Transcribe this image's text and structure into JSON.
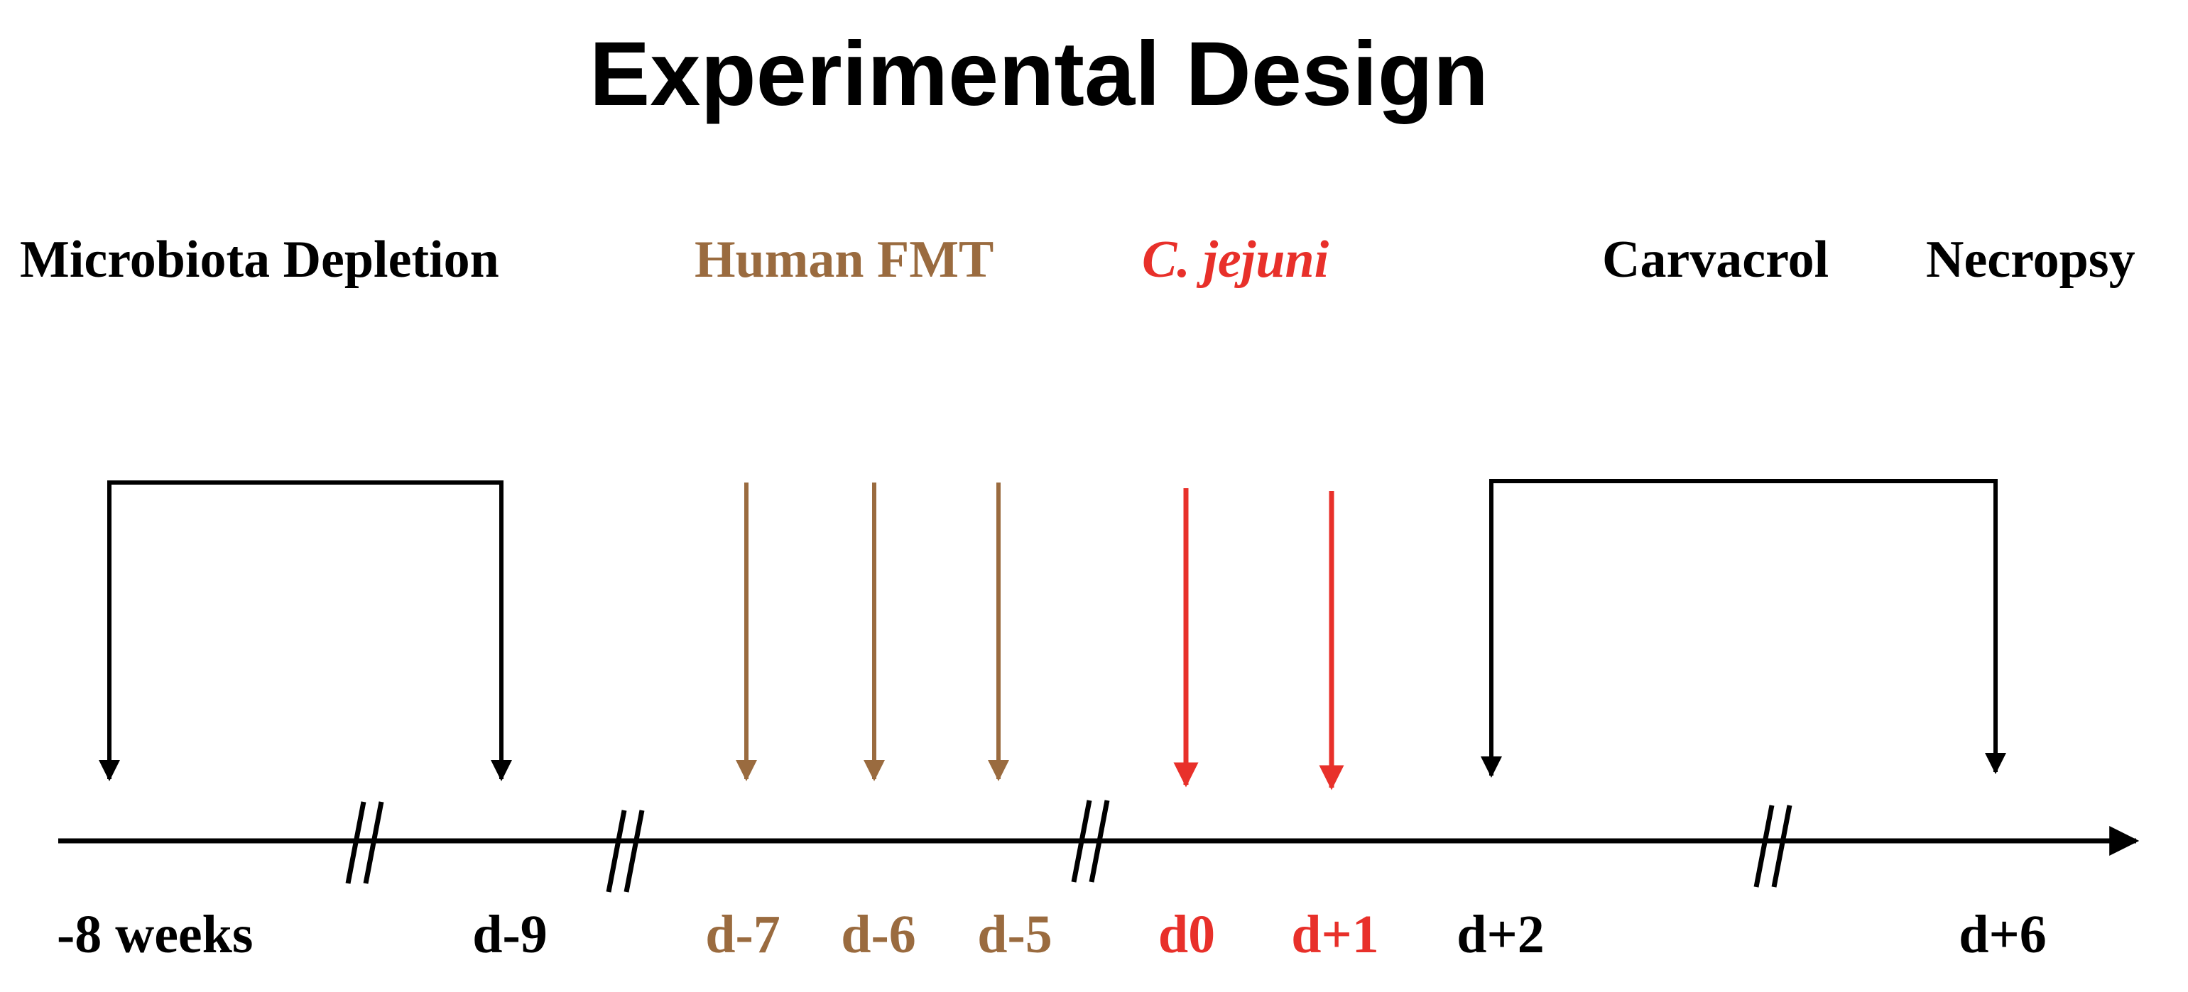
{
  "title": "Experimental Design",
  "colors": {
    "black": "#000000",
    "fmt": "#9a6b3f",
    "infection": "#e8302a"
  },
  "phases": {
    "depletion": "Microbiota Depletion",
    "fmt": "Human FMT",
    "infection": "C. jejuni",
    "carvacrol": "Carvacrol",
    "necropsy": "Necropsy"
  },
  "timepoints": {
    "minus8w": "-8 weeks",
    "dm9": "d-9",
    "dm7": "d-7",
    "dm6": "d-6",
    "dm5": "d-5",
    "d0": "d0",
    "dp1": "d+1",
    "dp2": "d+2",
    "dp6": "d+6"
  }
}
